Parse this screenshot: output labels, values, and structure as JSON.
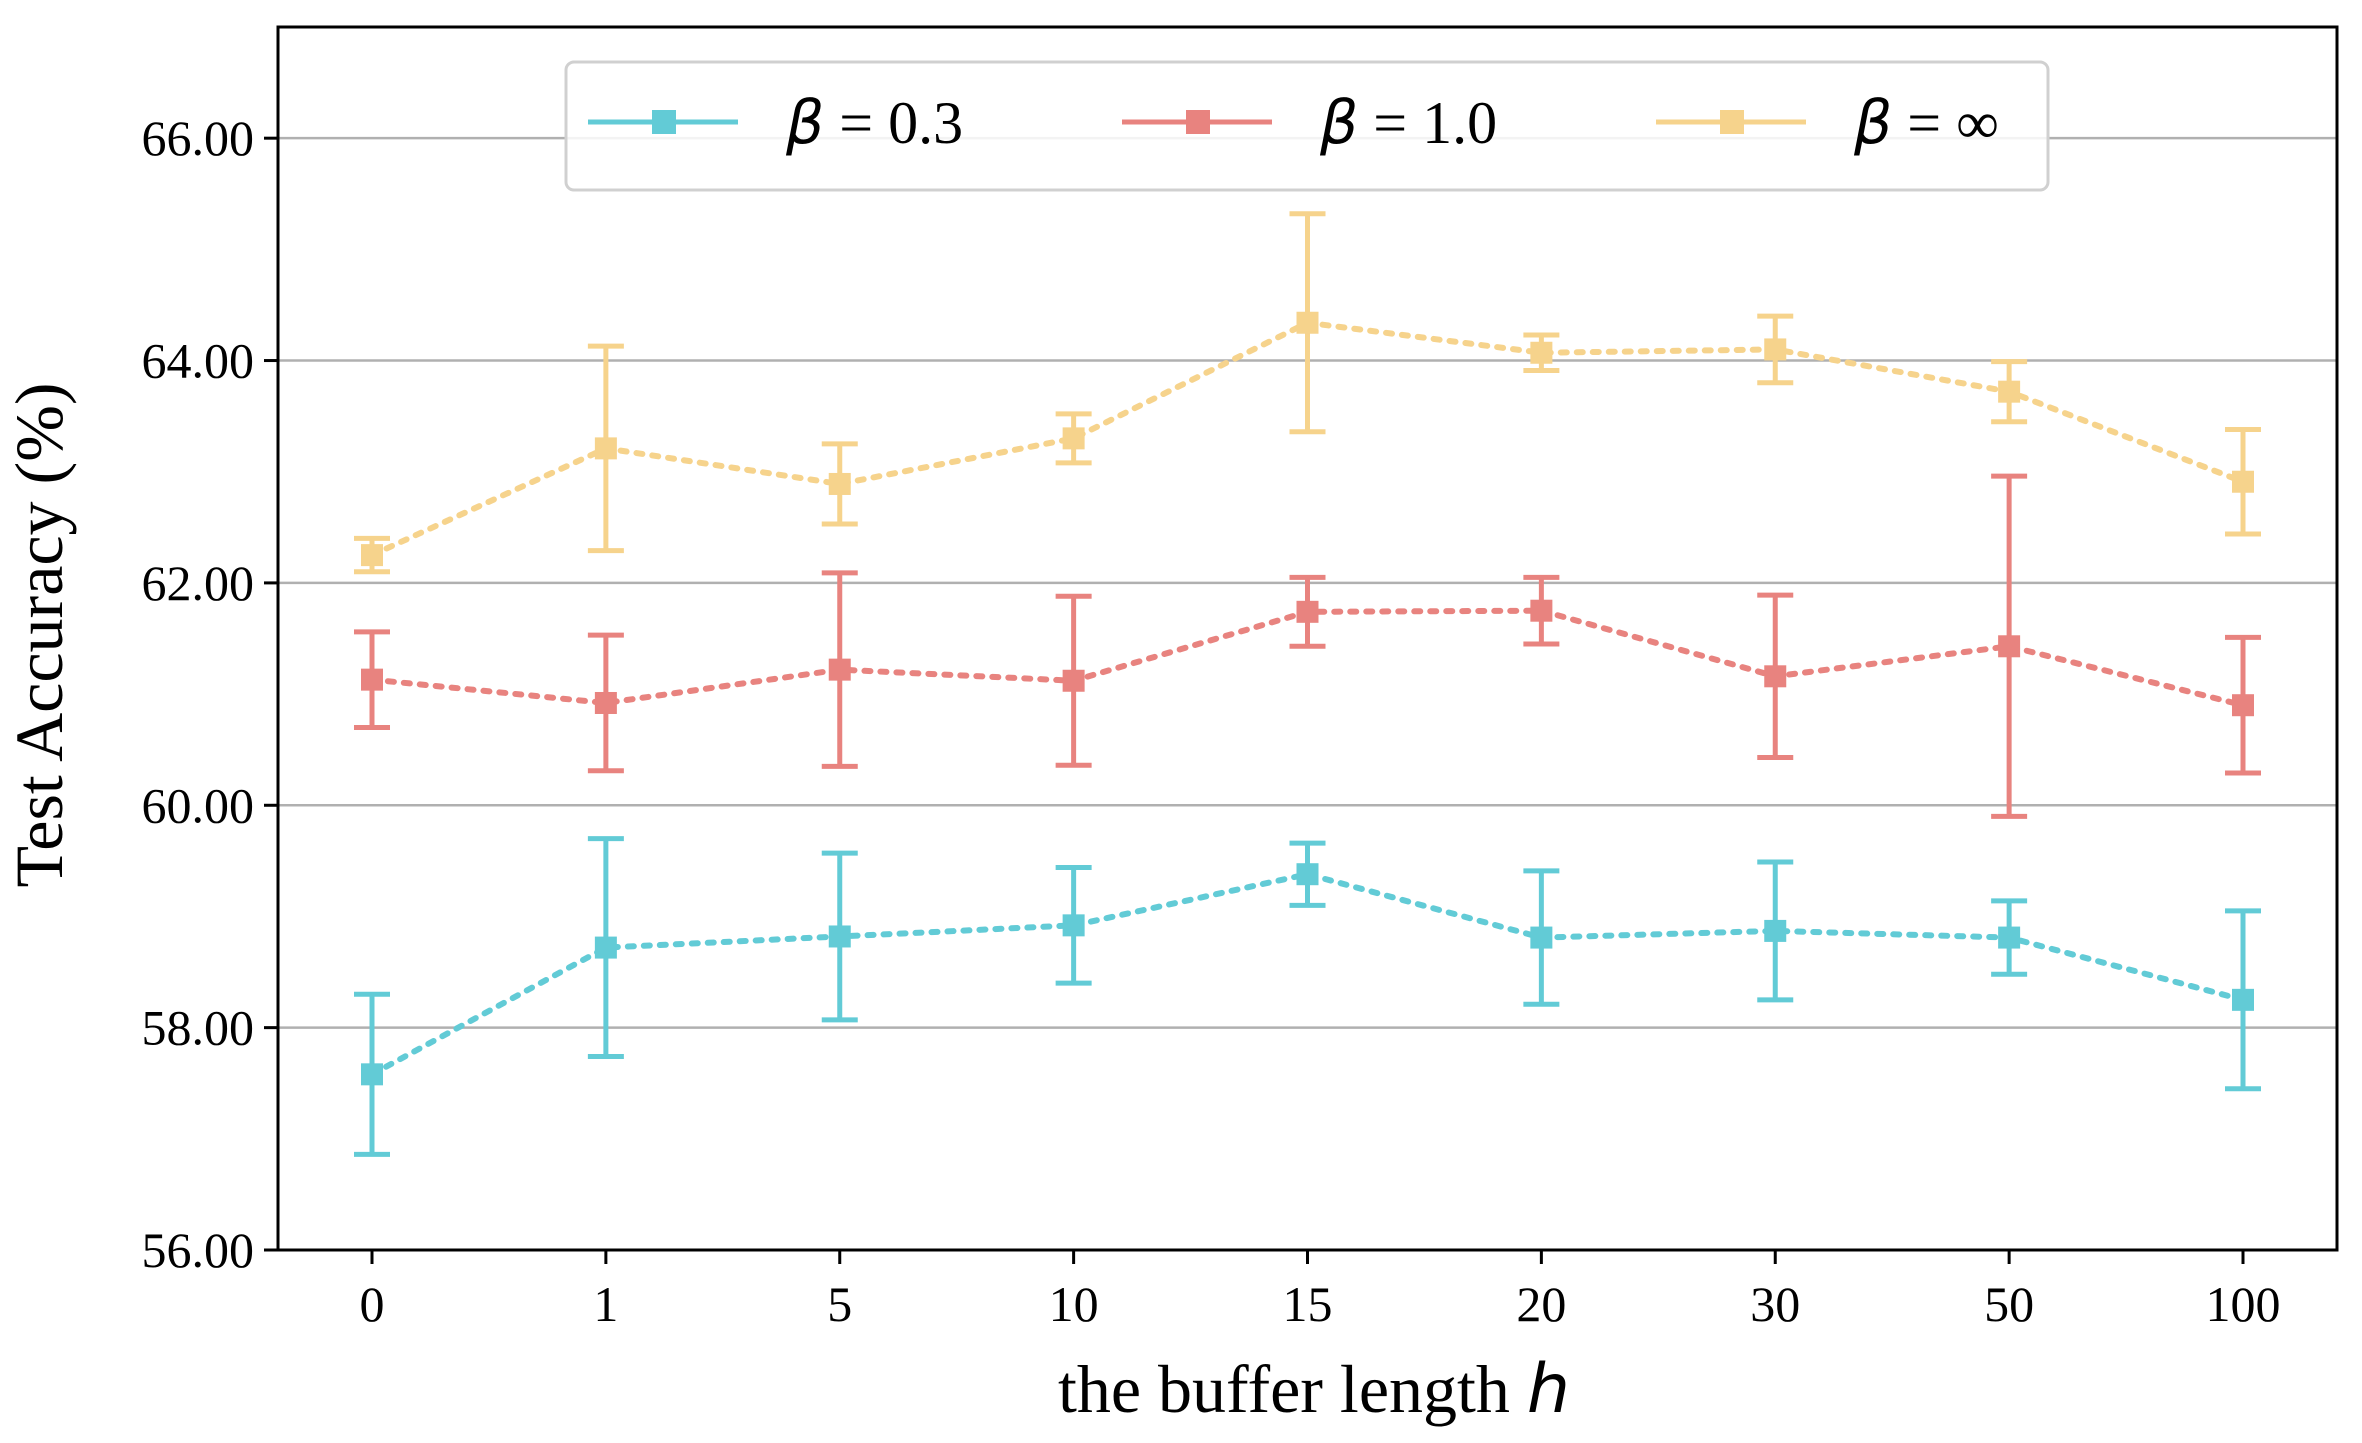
{
  "chart_data": {
    "type": "line",
    "x_categories": [
      "0",
      "1",
      "5",
      "10",
      "15",
      "20",
      "30",
      "50",
      "100"
    ],
    "xlabel_prefix": "the buffer length ",
    "xlabel_var": "h",
    "ylabel": "Test Accuracy (%)",
    "ylim": [
      56,
      67
    ],
    "yticks": [
      "56.00",
      "58.00",
      "60.00",
      "62.00",
      "64.00",
      "66.00"
    ],
    "ytick_values": [
      56,
      58,
      60,
      62,
      64,
      66
    ],
    "grid": "horizontal",
    "legend_placement": "top-center",
    "series": [
      {
        "legend_symbol": "β",
        "legend_value": " = 0.3",
        "color": "#62cbd6",
        "values": [
          57.58,
          58.72,
          58.82,
          58.92,
          59.38,
          58.81,
          58.87,
          58.81,
          58.25
        ],
        "errors": [
          0.72,
          0.98,
          0.75,
          0.52,
          0.28,
          0.6,
          0.62,
          0.33,
          0.8
        ]
      },
      {
        "legend_symbol": "β",
        "legend_value": " = 1.0",
        "color": "#e8837f",
        "values": [
          61.13,
          60.92,
          61.22,
          61.12,
          61.74,
          61.75,
          61.16,
          61.43,
          60.9
        ],
        "errors": [
          0.43,
          0.61,
          0.87,
          0.76,
          0.31,
          0.3,
          0.73,
          1.53,
          0.61
        ]
      },
      {
        "legend_symbol": "β",
        "legend_value": " = ∞",
        "color": "#f6d38c",
        "values": [
          62.25,
          63.21,
          62.89,
          63.3,
          64.34,
          64.07,
          64.1,
          63.72,
          62.91
        ],
        "errors": [
          0.15,
          0.92,
          0.36,
          0.22,
          0.98,
          0.16,
          0.3,
          0.27,
          0.47
        ]
      }
    ]
  }
}
